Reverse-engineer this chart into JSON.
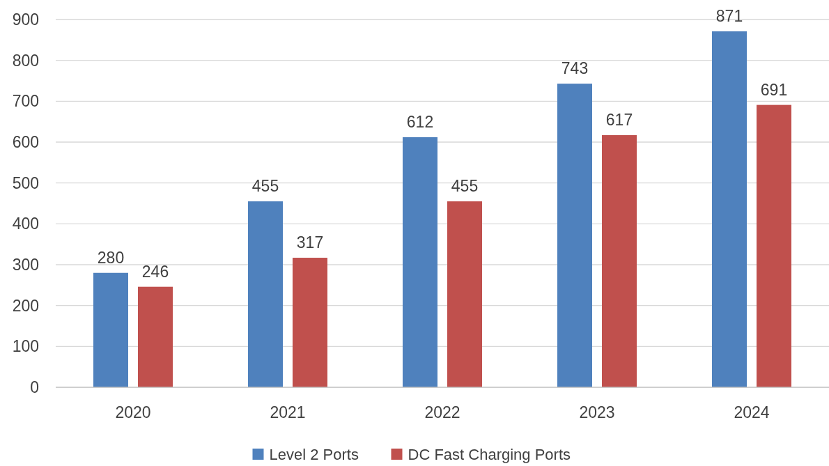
{
  "chart_data": {
    "type": "bar",
    "categories": [
      "2020",
      "2021",
      "2022",
      "2023",
      "2024"
    ],
    "series": [
      {
        "name": "Level 2 Ports",
        "color": "#4f81bd",
        "values": [
          280,
          455,
          612,
          743,
          871
        ]
      },
      {
        "name": "DC Fast Charging Ports",
        "color": "#c0504d",
        "values": [
          246,
          317,
          455,
          617,
          691
        ]
      }
    ],
    "ylim": [
      0,
      900
    ],
    "yticks": [
      0,
      100,
      200,
      300,
      400,
      500,
      600,
      700,
      800,
      900
    ],
    "grid": "y",
    "legend": "bottom",
    "data_labels": true
  }
}
